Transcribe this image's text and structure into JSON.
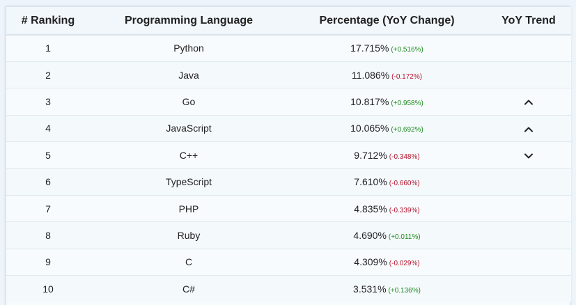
{
  "table": {
    "headers": {
      "rank": "# Ranking",
      "language": "Programming Language",
      "percentage": "Percentage (YoY Change)",
      "trend": "YoY Trend"
    },
    "rows": [
      {
        "rank": "1",
        "language": "Python",
        "percentage": "17.715%",
        "change": "(+0.516%)",
        "direction": "up",
        "trend": ""
      },
      {
        "rank": "2",
        "language": "Java",
        "percentage": "11.086%",
        "change": "(-0.172%)",
        "direction": "down",
        "trend": ""
      },
      {
        "rank": "3",
        "language": "Go",
        "percentage": "10.817%",
        "change": "(+0.958%)",
        "direction": "up",
        "trend": "chevron-up-icon"
      },
      {
        "rank": "4",
        "language": "JavaScript",
        "percentage": "10.065%",
        "change": "(+0.692%)",
        "direction": "up",
        "trend": "chevron-up-icon"
      },
      {
        "rank": "5",
        "language": "C++",
        "percentage": "9.712%",
        "change": "(-0.348%)",
        "direction": "down",
        "trend": "chevron-down-icon"
      },
      {
        "rank": "6",
        "language": "TypeScript",
        "percentage": "7.610%",
        "change": "(-0.660%)",
        "direction": "down",
        "trend": ""
      },
      {
        "rank": "7",
        "language": "PHP",
        "percentage": "4.835%",
        "change": "(-0.339%)",
        "direction": "down",
        "trend": ""
      },
      {
        "rank": "8",
        "language": "Ruby",
        "percentage": "4.690%",
        "change": "(+0.011%)",
        "direction": "up",
        "trend": ""
      },
      {
        "rank": "9",
        "language": "C",
        "percentage": "4.309%",
        "change": "(-0.029%)",
        "direction": "down",
        "trend": ""
      },
      {
        "rank": "10",
        "language": "C#",
        "percentage": "3.531%",
        "change": "(+0.136%)",
        "direction": "up",
        "trend": ""
      }
    ]
  },
  "colors": {
    "positive_change": "#1a8a1a",
    "negative_change": "#b3122a"
  }
}
